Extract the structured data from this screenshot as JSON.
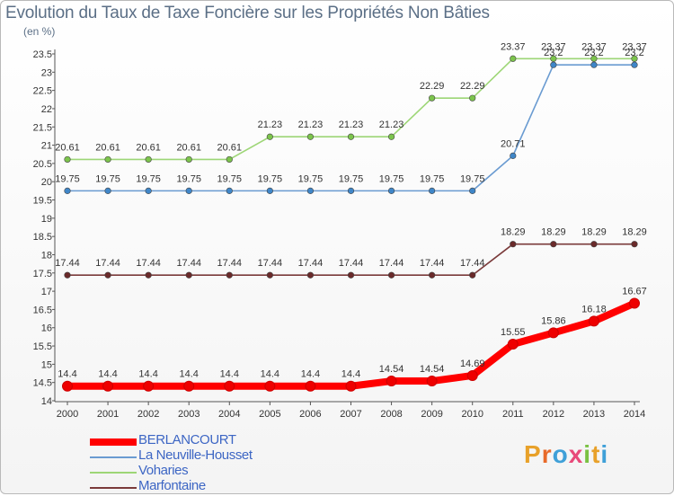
{
  "title": "Evolution du Taux de Taxe Foncière sur les Propriétés Non Bâties",
  "unit": "(en %)",
  "logo": {
    "text": "Proxiti",
    "letters": [
      "P",
      "r",
      "o",
      "x",
      "i",
      "t",
      "i"
    ],
    "colors": [
      "#e8a12a",
      "#e86a2a",
      "#3fa0d8",
      "#e84a7a",
      "#7ac142",
      "#e8a12a",
      "#3fa0d8"
    ]
  },
  "chart_data": {
    "type": "line",
    "title": "Evolution du Taux de Taxe Foncière sur les Propriétés Non Bâties",
    "ylabel": "(en %)",
    "xlabel": "",
    "x": [
      "2000",
      "2001",
      "2002",
      "2003",
      "2004",
      "2005",
      "2006",
      "2007",
      "2008",
      "2009",
      "2010",
      "2011",
      "2012",
      "2013",
      "2014"
    ],
    "ylim": [
      14,
      23.5
    ],
    "yticks": [
      "14",
      "14.5",
      "15",
      "15.5",
      "16",
      "16.5",
      "17",
      "17.5",
      "18",
      "18.5",
      "19",
      "19.5",
      "20",
      "20.5",
      "21",
      "21.5",
      "22",
      "22.5",
      "23",
      "23.5"
    ],
    "grid": false,
    "legend_position": "bottom-left",
    "series": [
      {
        "name": "BERLANCOURT",
        "color": "#ff0000",
        "marker": "#ee0000",
        "heavy": true,
        "values": [
          14.4,
          14.4,
          14.4,
          14.4,
          14.4,
          14.4,
          14.4,
          14.4,
          14.54,
          14.54,
          14.69,
          15.55,
          15.86,
          16.18,
          16.67
        ],
        "labels": [
          "14.4",
          "14.4",
          "14.4",
          "14.4",
          "14.4",
          "14.4",
          "14.4",
          "14.4",
          "14.54",
          "14.54",
          "14.69",
          "15.55",
          "15.86",
          "16.18",
          "16.67"
        ]
      },
      {
        "name": "La Neuville-Housset",
        "color": "#6a9bd1",
        "marker": "#3f86c8",
        "heavy": false,
        "values": [
          19.75,
          19.75,
          19.75,
          19.75,
          19.75,
          19.75,
          19.75,
          19.75,
          19.75,
          19.75,
          19.75,
          20.71,
          23.2,
          23.2,
          23.2
        ],
        "labels": [
          "19.75",
          "19.75",
          "19.75",
          "19.75",
          "19.75",
          "19.75",
          "19.75",
          "19.75",
          "19.75",
          "19.75",
          "19.75",
          "20.71",
          "23.2",
          "23.2",
          "23.2"
        ]
      },
      {
        "name": "Voharies",
        "color": "#9dd676",
        "marker": "#7cc44c",
        "heavy": false,
        "values": [
          20.61,
          20.61,
          20.61,
          20.61,
          20.61,
          21.23,
          21.23,
          21.23,
          21.23,
          22.29,
          22.29,
          23.37,
          23.37,
          23.37,
          23.37
        ],
        "labels": [
          "20.61",
          "20.61",
          "20.61",
          "20.61",
          "20.61",
          "21.23",
          "21.23",
          "21.23",
          "21.23",
          "22.29",
          "22.29",
          "23.37",
          "23.37",
          "23.37",
          "23.37"
        ]
      },
      {
        "name": "Marfontaine",
        "color": "#7a3a3a",
        "marker": "#6a2a2a",
        "heavy": false,
        "values": [
          17.44,
          17.44,
          17.44,
          17.44,
          17.44,
          17.44,
          17.44,
          17.44,
          17.44,
          17.44,
          17.44,
          18.29,
          18.29,
          18.29,
          18.29
        ],
        "labels": [
          "17.44",
          "17.44",
          "17.44",
          "17.44",
          "17.44",
          "17.44",
          "17.44",
          "17.44",
          "17.44",
          "17.44",
          "17.44",
          "18.29",
          "18.29",
          "18.29",
          "18.29"
        ]
      }
    ]
  }
}
